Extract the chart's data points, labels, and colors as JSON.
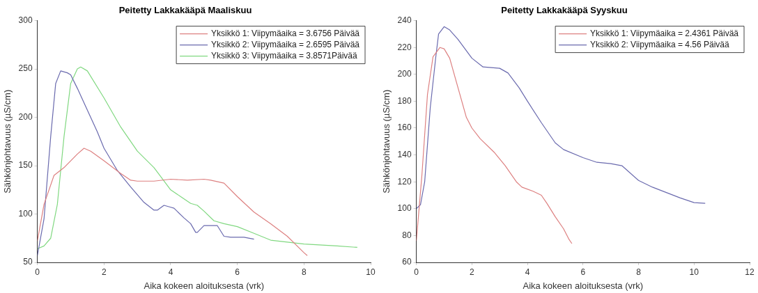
{
  "chart_data": [
    {
      "type": "line",
      "title": "Peitetty Lakkakääpä Maaliskuu",
      "xlabel": "Aika kokeen aloituksesta (vrk)",
      "ylabel": "Sähkönjohtavuus (µS/cm)",
      "xlim": [
        0,
        10
      ],
      "xticks": [
        0,
        2,
        4,
        6,
        8,
        10
      ],
      "ylim": [
        50,
        300
      ],
      "yticks": [
        50,
        100,
        150,
        200,
        250,
        300
      ],
      "legend": "top right",
      "grid": false,
      "line_style": "solid",
      "marker": "none",
      "series": [
        {
          "name": "Yksikkö 1: Viipymäaika = 3.6756 Päivää",
          "color": "#dd8080",
          "x": [
            0,
            0.2,
            0.5,
            0.8,
            1.2,
            1.4,
            1.6,
            2,
            2.5,
            2.8,
            3,
            3.5,
            4,
            4.5,
            5,
            5.2,
            5.6,
            6,
            6.5,
            7,
            7.5,
            8,
            8.1
          ],
          "values": [
            72,
            110,
            140,
            148,
            162,
            168,
            165,
            155,
            142,
            135,
            134,
            134,
            136,
            135,
            136,
            135,
            132,
            118,
            102,
            90,
            77,
            60,
            57
          ]
        },
        {
          "name": "Yksikkö 2: Viipymäaika = 2.6595 Päivää",
          "color": "#6a6aae",
          "x": [
            0,
            0.2,
            0.4,
            0.55,
            0.7,
            0.9,
            1,
            1.2,
            1.4,
            1.8,
            2,
            2.4,
            2.8,
            3.2,
            3.5,
            3.6,
            3.8,
            4,
            4.1,
            4.4,
            4.6,
            4.75,
            4.8,
            5,
            5.4,
            5.6,
            5.8,
            6.2,
            6.5
          ],
          "values": [
            57,
            95,
            180,
            235,
            248,
            246,
            244,
            230,
            215,
            185,
            168,
            145,
            128,
            112,
            104,
            104,
            109,
            107,
            106,
            96,
            90,
            81,
            81,
            88,
            88,
            77,
            76,
            76,
            74
          ]
        },
        {
          "name": "Yksikkö 3: Viipymäaika = 3.8571Päivää",
          "color": "#80d880",
          "x": [
            0,
            0.2,
            0.4,
            0.6,
            0.8,
            1,
            1.2,
            1.3,
            1.5,
            2,
            2.5,
            3,
            3.5,
            4,
            4.3,
            4.6,
            4.8,
            5,
            5.3,
            5.6,
            6,
            6.5,
            7,
            7.5,
            8,
            9,
            9.6
          ],
          "values": [
            64,
            67,
            75,
            110,
            180,
            235,
            250,
            252,
            248,
            220,
            190,
            165,
            148,
            125,
            118,
            111,
            109,
            103,
            93,
            90,
            87,
            80,
            73,
            71,
            69,
            67,
            65.5
          ]
        }
      ]
    },
    {
      "type": "line",
      "title": "Peitetty Lakkakääpä Syyskuu",
      "xlabel": "Aika kokeen aloituksesta (vrk)",
      "ylabel": "Sähkönjohtavuus (µS/cm)",
      "xlim": [
        0,
        12
      ],
      "xticks": [
        0,
        2,
        4,
        6,
        8,
        10,
        12
      ],
      "ylim": [
        60,
        240
      ],
      "yticks": [
        60,
        80,
        100,
        120,
        140,
        160,
        180,
        200,
        220,
        240
      ],
      "legend": "top right",
      "grid": false,
      "line_style": "solid",
      "marker": "none",
      "series": [
        {
          "name": "Yksikkö 1: Viipymäaika = 2.4361 Päivää",
          "color": "#dd8080",
          "x": [
            0,
            0.2,
            0.4,
            0.6,
            0.85,
            1,
            1.2,
            1.5,
            1.8,
            2,
            2.3,
            2.8,
            3.2,
            3.6,
            3.8,
            4.2,
            4.5,
            4.7,
            5,
            5.3,
            5.5,
            5.6
          ],
          "values": [
            76,
            125,
            185,
            213,
            220,
            219,
            212,
            190,
            168,
            160,
            152,
            142,
            132,
            120,
            116,
            113,
            110,
            104,
            94,
            85,
            77,
            74
          ]
        },
        {
          "name": "Yksikkö 2: Viipymäaika = 4.56 Päivää",
          "color": "#6a6aae",
          "x": [
            0,
            0.15,
            0.3,
            0.5,
            0.7,
            0.8,
            1,
            1.2,
            1.5,
            2,
            2.4,
            3,
            3.3,
            3.7,
            4,
            4.5,
            5,
            5.3,
            6,
            6.5,
            7,
            7.4,
            8,
            8.5,
            9,
            9.5,
            10,
            10.4
          ],
          "values": [
            100,
            103,
            120,
            175,
            213,
            230,
            235.5,
            233,
            226,
            212,
            205.5,
            204.5,
            201,
            190,
            180,
            164,
            149,
            144,
            138,
            134.5,
            133.5,
            132,
            121,
            116,
            112,
            108,
            104.5,
            104
          ]
        }
      ]
    }
  ]
}
